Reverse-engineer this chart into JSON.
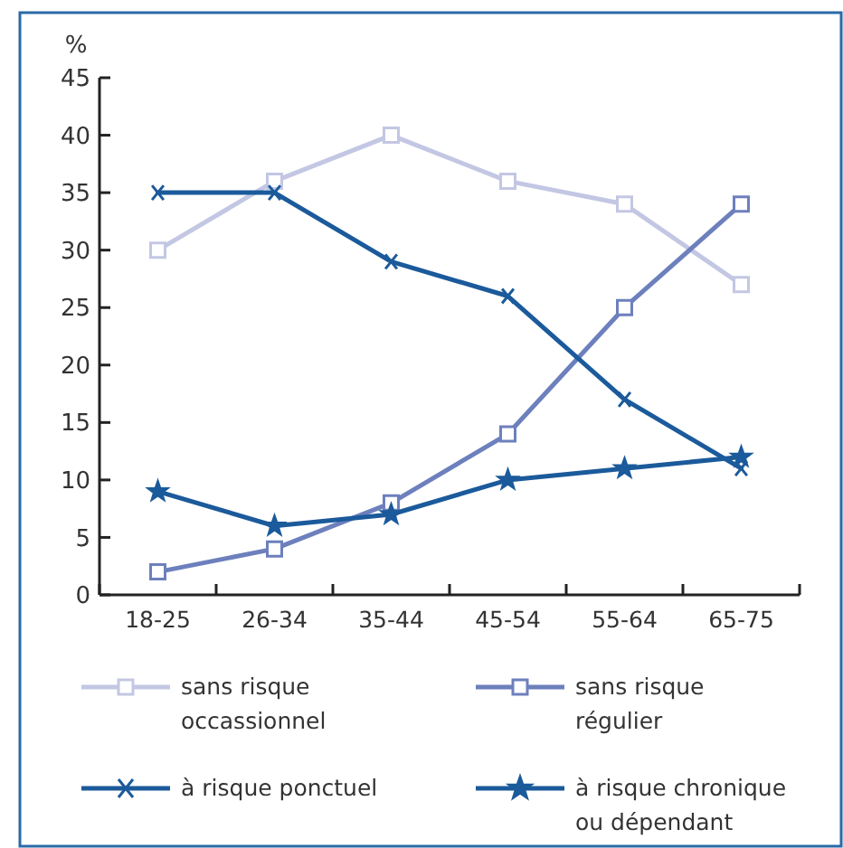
{
  "chart_data": {
    "type": "line",
    "ylabel": "%",
    "categories": [
      "18-25",
      "26-34",
      "35-44",
      "45-54",
      "55-64",
      "65-75"
    ],
    "series": [
      {
        "name": "sans risque occassionnel",
        "color": "#c3c7e3",
        "marker": "square",
        "values": [
          30,
          36,
          40,
          36,
          34,
          27
        ]
      },
      {
        "name": "sans risque régulier",
        "color": "#6d80bd",
        "marker": "square",
        "values": [
          2,
          4,
          8,
          14,
          25,
          34
        ]
      },
      {
        "name": "à risque ponctuel",
        "color": "#1b5a9b",
        "marker": "cross",
        "values": [
          35,
          35,
          29,
          26,
          17,
          11
        ]
      },
      {
        "name": "à risque chronique ou dépendant",
        "color": "#1b5a9b",
        "marker": "star",
        "values": [
          9,
          6,
          7,
          10,
          11,
          12
        ]
      }
    ],
    "ylim": [
      0,
      45
    ],
    "yticks": [
      0,
      5,
      10,
      15,
      20,
      25,
      30,
      35,
      40,
      45
    ],
    "grid": false,
    "legend": "bottom",
    "line_style": "solid"
  }
}
